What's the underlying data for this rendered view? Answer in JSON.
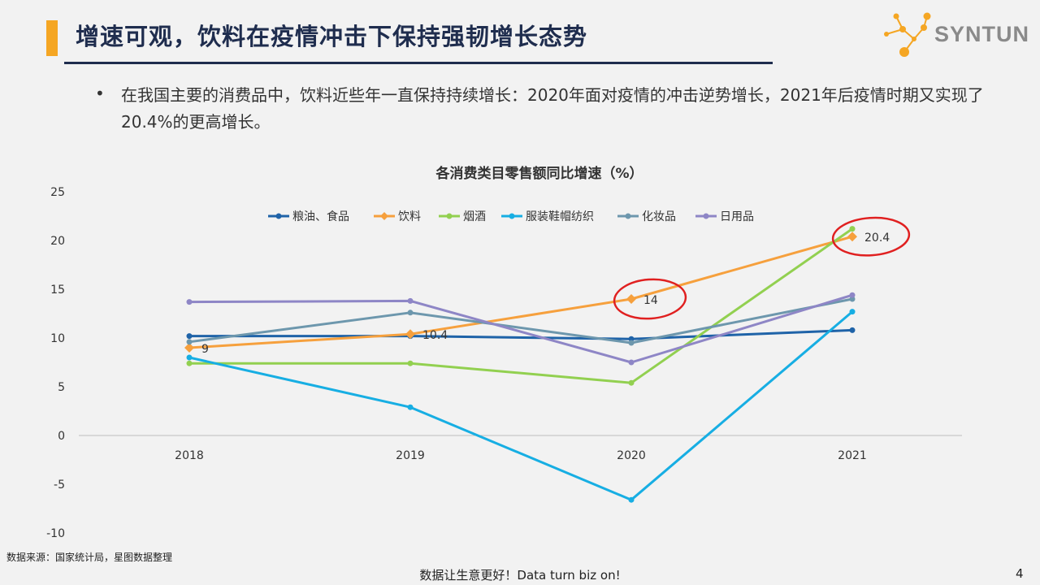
{
  "header": {
    "title": "增速可观，饮料在疫情冲击下保持强韧增长态势"
  },
  "logo": {
    "text": "SYNTUN"
  },
  "bullet": {
    "text": "在我国主要的消费品中，饮料近些年一直保持持续增长：2020年面对疫情的冲击逆势增长，2021年后疫情时期又实现了20.4%的更高增长。"
  },
  "chart_data": {
    "type": "line",
    "title": "各消费类目零售额同比增速（%）",
    "categories": [
      "2018",
      "2019",
      "2020",
      "2021"
    ],
    "ylim": [
      -10,
      25
    ],
    "yticks": [
      "25",
      "20",
      "15",
      "10",
      "5",
      "0",
      "-5",
      "-10"
    ],
    "legend_position": "top",
    "grid": false,
    "series": [
      {
        "name": "粮油、食品",
        "color": "#1f63a8",
        "marker": "circle",
        "values": [
          10.2,
          10.2,
          9.9,
          10.8
        ]
      },
      {
        "name": "饮料",
        "color": "#f6a03d",
        "marker": "diamond",
        "values": [
          9,
          10.4,
          14,
          20.4
        ],
        "labels": [
          "9",
          "10.4",
          "14",
          "20.4"
        ]
      },
      {
        "name": "烟酒",
        "color": "#92d050",
        "marker": "circle",
        "values": [
          7.4,
          7.4,
          5.4,
          21.2
        ]
      },
      {
        "name": "服装鞋帽纺织",
        "color": "#17aee3",
        "marker": "circle",
        "values": [
          8,
          2.9,
          -6.6,
          12.7
        ]
      },
      {
        "name": "化妆品",
        "color": "#6d97ad",
        "marker": "circle",
        "values": [
          9.6,
          12.6,
          9.5,
          14
        ]
      },
      {
        "name": "日用品",
        "color": "#8e86c6",
        "marker": "circle",
        "values": [
          13.7,
          13.8,
          7.5,
          14.4
        ]
      }
    ],
    "highlight_color": "#e02020"
  },
  "footer": {
    "source": "数据来源：国家统计局，星图数据整理",
    "slogan": "数据让生意更好！Data turn biz on!",
    "page_number": "4"
  }
}
